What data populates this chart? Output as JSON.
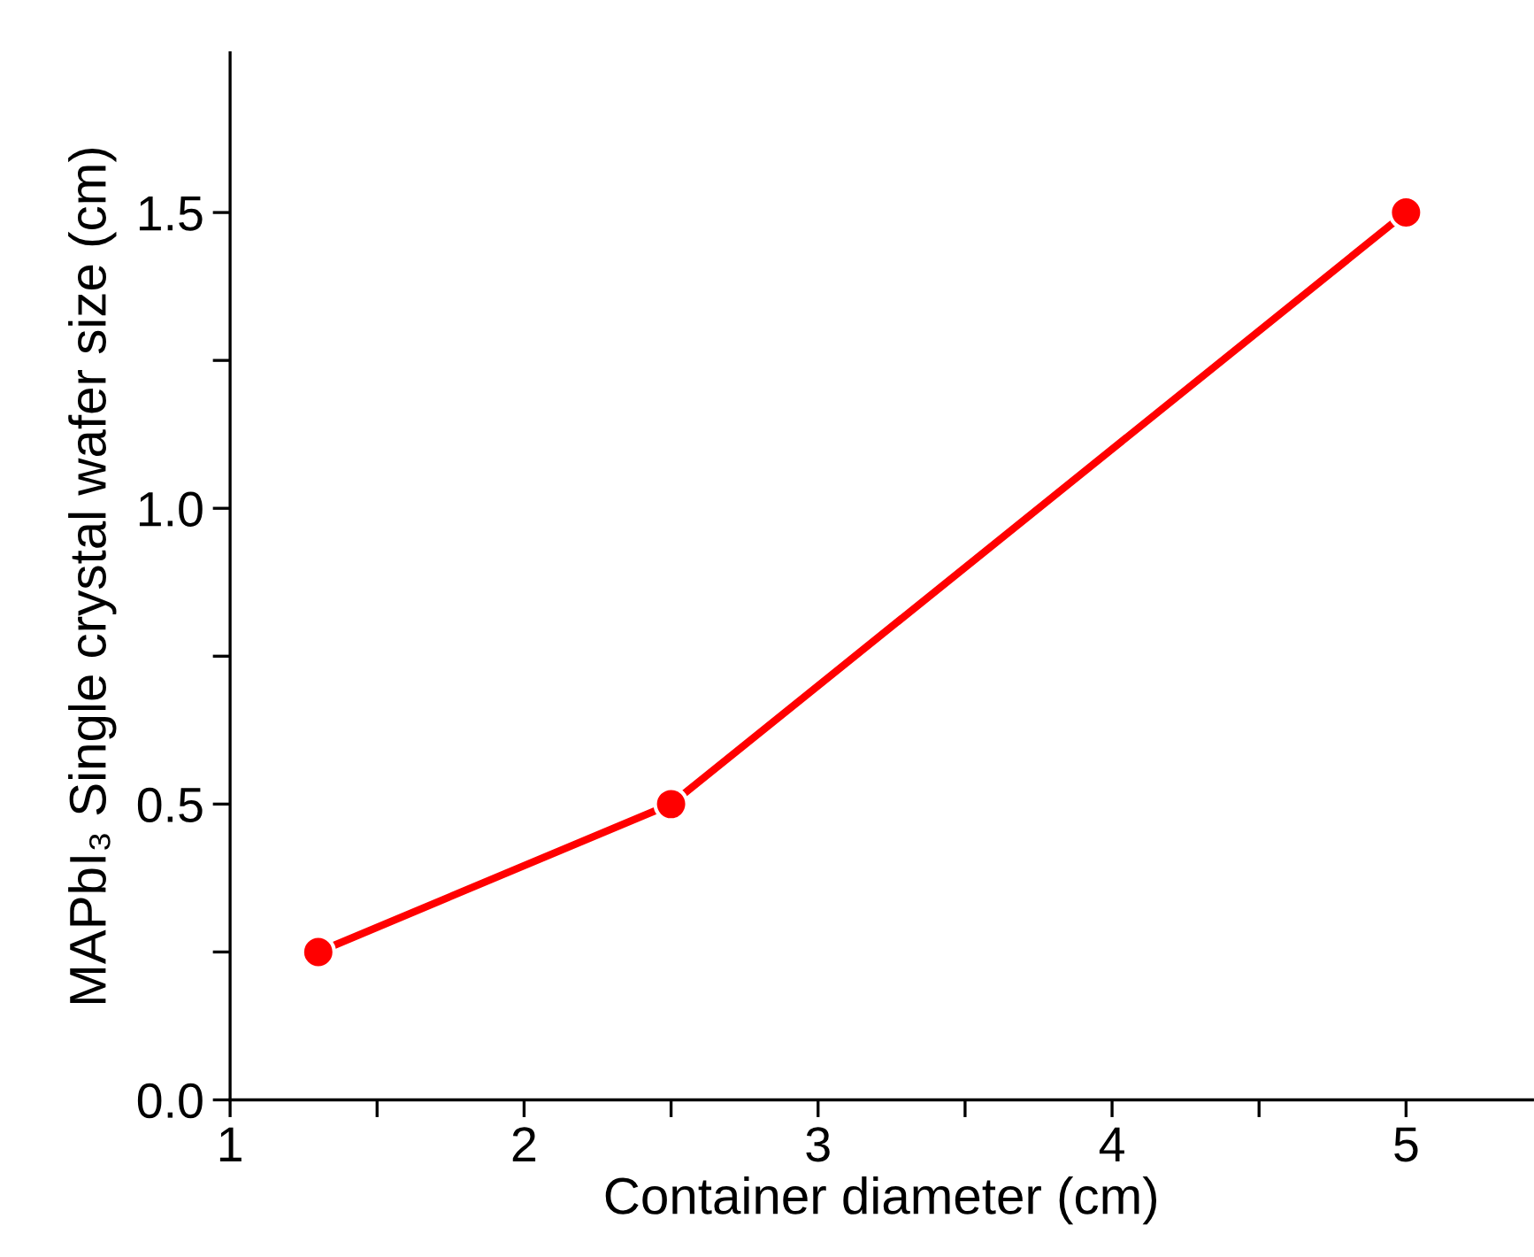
{
  "chart_data": {
    "type": "line",
    "xlabel": "Container diameter (cm)",
    "ylabel": "MAPbI₃ Single crystal wafer size (cm)",
    "x": [
      1.3,
      2.5,
      5
    ],
    "series": [
      {
        "color": "#ff0000",
        "values": [
          0.25,
          0.5,
          1.5
        ]
      }
    ],
    "xlim": [
      1,
      5.43
    ],
    "ylim": [
      0,
      1.77
    ],
    "xticks": [
      1,
      {
        "value": 1.5,
        "label": null
      },
      2,
      {
        "value": 2.5,
        "label": null
      },
      3,
      {
        "value": 3.5,
        "label": null
      },
      4,
      {
        "value": 4.5,
        "label": null
      },
      5
    ],
    "yticks": [
      {
        "value": 0,
        "label": "0.0"
      },
      {
        "value": 0.25,
        "label": null
      },
      {
        "value": 0.5,
        "label": "0.5"
      },
      {
        "value": 0.75,
        "label": null
      },
      {
        "value": 1.0,
        "label": "1.0"
      },
      {
        "value": 1.25,
        "label": null
      },
      {
        "value": 1.5,
        "label": "1.5"
      }
    ],
    "marker": "circle",
    "line_style": "solid",
    "grid": false,
    "legend": false
  }
}
